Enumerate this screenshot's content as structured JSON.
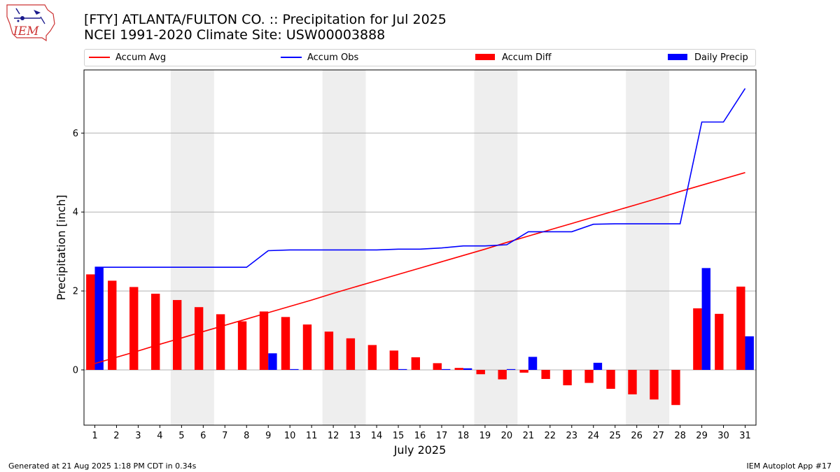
{
  "header": {
    "title_line1": "[FTY] ATLANTA/FULTON CO. :: Precipitation for Jul 2025",
    "title_line2": "NCEI 1991-2020 Climate Site: USW00003888",
    "logo_text": "IEM"
  },
  "footer": {
    "generated": "Generated at 21 Aug 2025 1:18 PM CDT in 0.34s",
    "app": "IEM Autoplot App #17"
  },
  "colors": {
    "accum_avg": "#ff0000",
    "accum_obs": "#0000ff",
    "accum_diff": "#ff0000",
    "daily_precip": "#0000ff",
    "weekend_shade": "#eeeeee",
    "grid": "#b0b0b0"
  },
  "chart_data": {
    "type": "bar",
    "xlabel": "July 2025",
    "ylabel": "Precipitation [inch]",
    "x": [
      1,
      2,
      3,
      4,
      5,
      6,
      7,
      8,
      9,
      10,
      11,
      12,
      13,
      14,
      15,
      16,
      17,
      18,
      19,
      20,
      21,
      22,
      23,
      24,
      25,
      26,
      27,
      28,
      29,
      30,
      31
    ],
    "xlim": [
      0.5,
      31.5
    ],
    "ylim": [
      -1.4,
      7.6
    ],
    "yticks": [
      0,
      2,
      4,
      6
    ],
    "grid": "horizontal",
    "legend_position": "top",
    "shaded_weekends": [
      [
        5,
        6
      ],
      [
        12,
        13
      ],
      [
        19,
        20
      ],
      [
        26,
        27
      ]
    ],
    "series": [
      {
        "name": "Accum Avg",
        "kind": "line",
        "values": [
          0.16,
          0.32,
          0.48,
          0.65,
          0.81,
          0.97,
          1.13,
          1.29,
          1.45,
          1.61,
          1.77,
          1.94,
          2.1,
          2.26,
          2.42,
          2.58,
          2.74,
          2.9,
          3.06,
          3.23,
          3.39,
          3.55,
          3.71,
          3.87,
          4.03,
          4.19,
          4.35,
          4.52,
          4.68,
          4.84,
          5.0
        ]
      },
      {
        "name": "Accum Obs",
        "kind": "line",
        "values": [
          2.6,
          2.6,
          2.6,
          2.6,
          2.6,
          2.6,
          2.6,
          2.6,
          3.02,
          3.04,
          3.04,
          3.04,
          3.04,
          3.04,
          3.06,
          3.06,
          3.09,
          3.14,
          3.14,
          3.17,
          3.5,
          3.5,
          3.5,
          3.69,
          3.7,
          3.7,
          3.7,
          3.7,
          6.28,
          6.28,
          7.13
        ]
      },
      {
        "name": "Accum Diff",
        "kind": "bar",
        "values": [
          2.42,
          2.26,
          2.1,
          1.93,
          1.77,
          1.59,
          1.41,
          1.23,
          1.48,
          1.34,
          1.15,
          0.97,
          0.8,
          0.63,
          0.49,
          0.32,
          0.17,
          0.05,
          -0.11,
          -0.24,
          -0.07,
          -0.23,
          -0.39,
          -0.33,
          -0.48,
          -0.62,
          -0.75,
          -0.89,
          1.56,
          1.42,
          2.11
        ]
      },
      {
        "name": "Daily Precip",
        "kind": "bar",
        "values": [
          2.6,
          0,
          0,
          0,
          0,
          0,
          0,
          0,
          0.42,
          0.02,
          0,
          0,
          0,
          0,
          0.02,
          0,
          0.02,
          0.04,
          0,
          0.02,
          0.33,
          0,
          0,
          0.18,
          0,
          0,
          0,
          0,
          2.58,
          0,
          0.85
        ]
      }
    ]
  }
}
